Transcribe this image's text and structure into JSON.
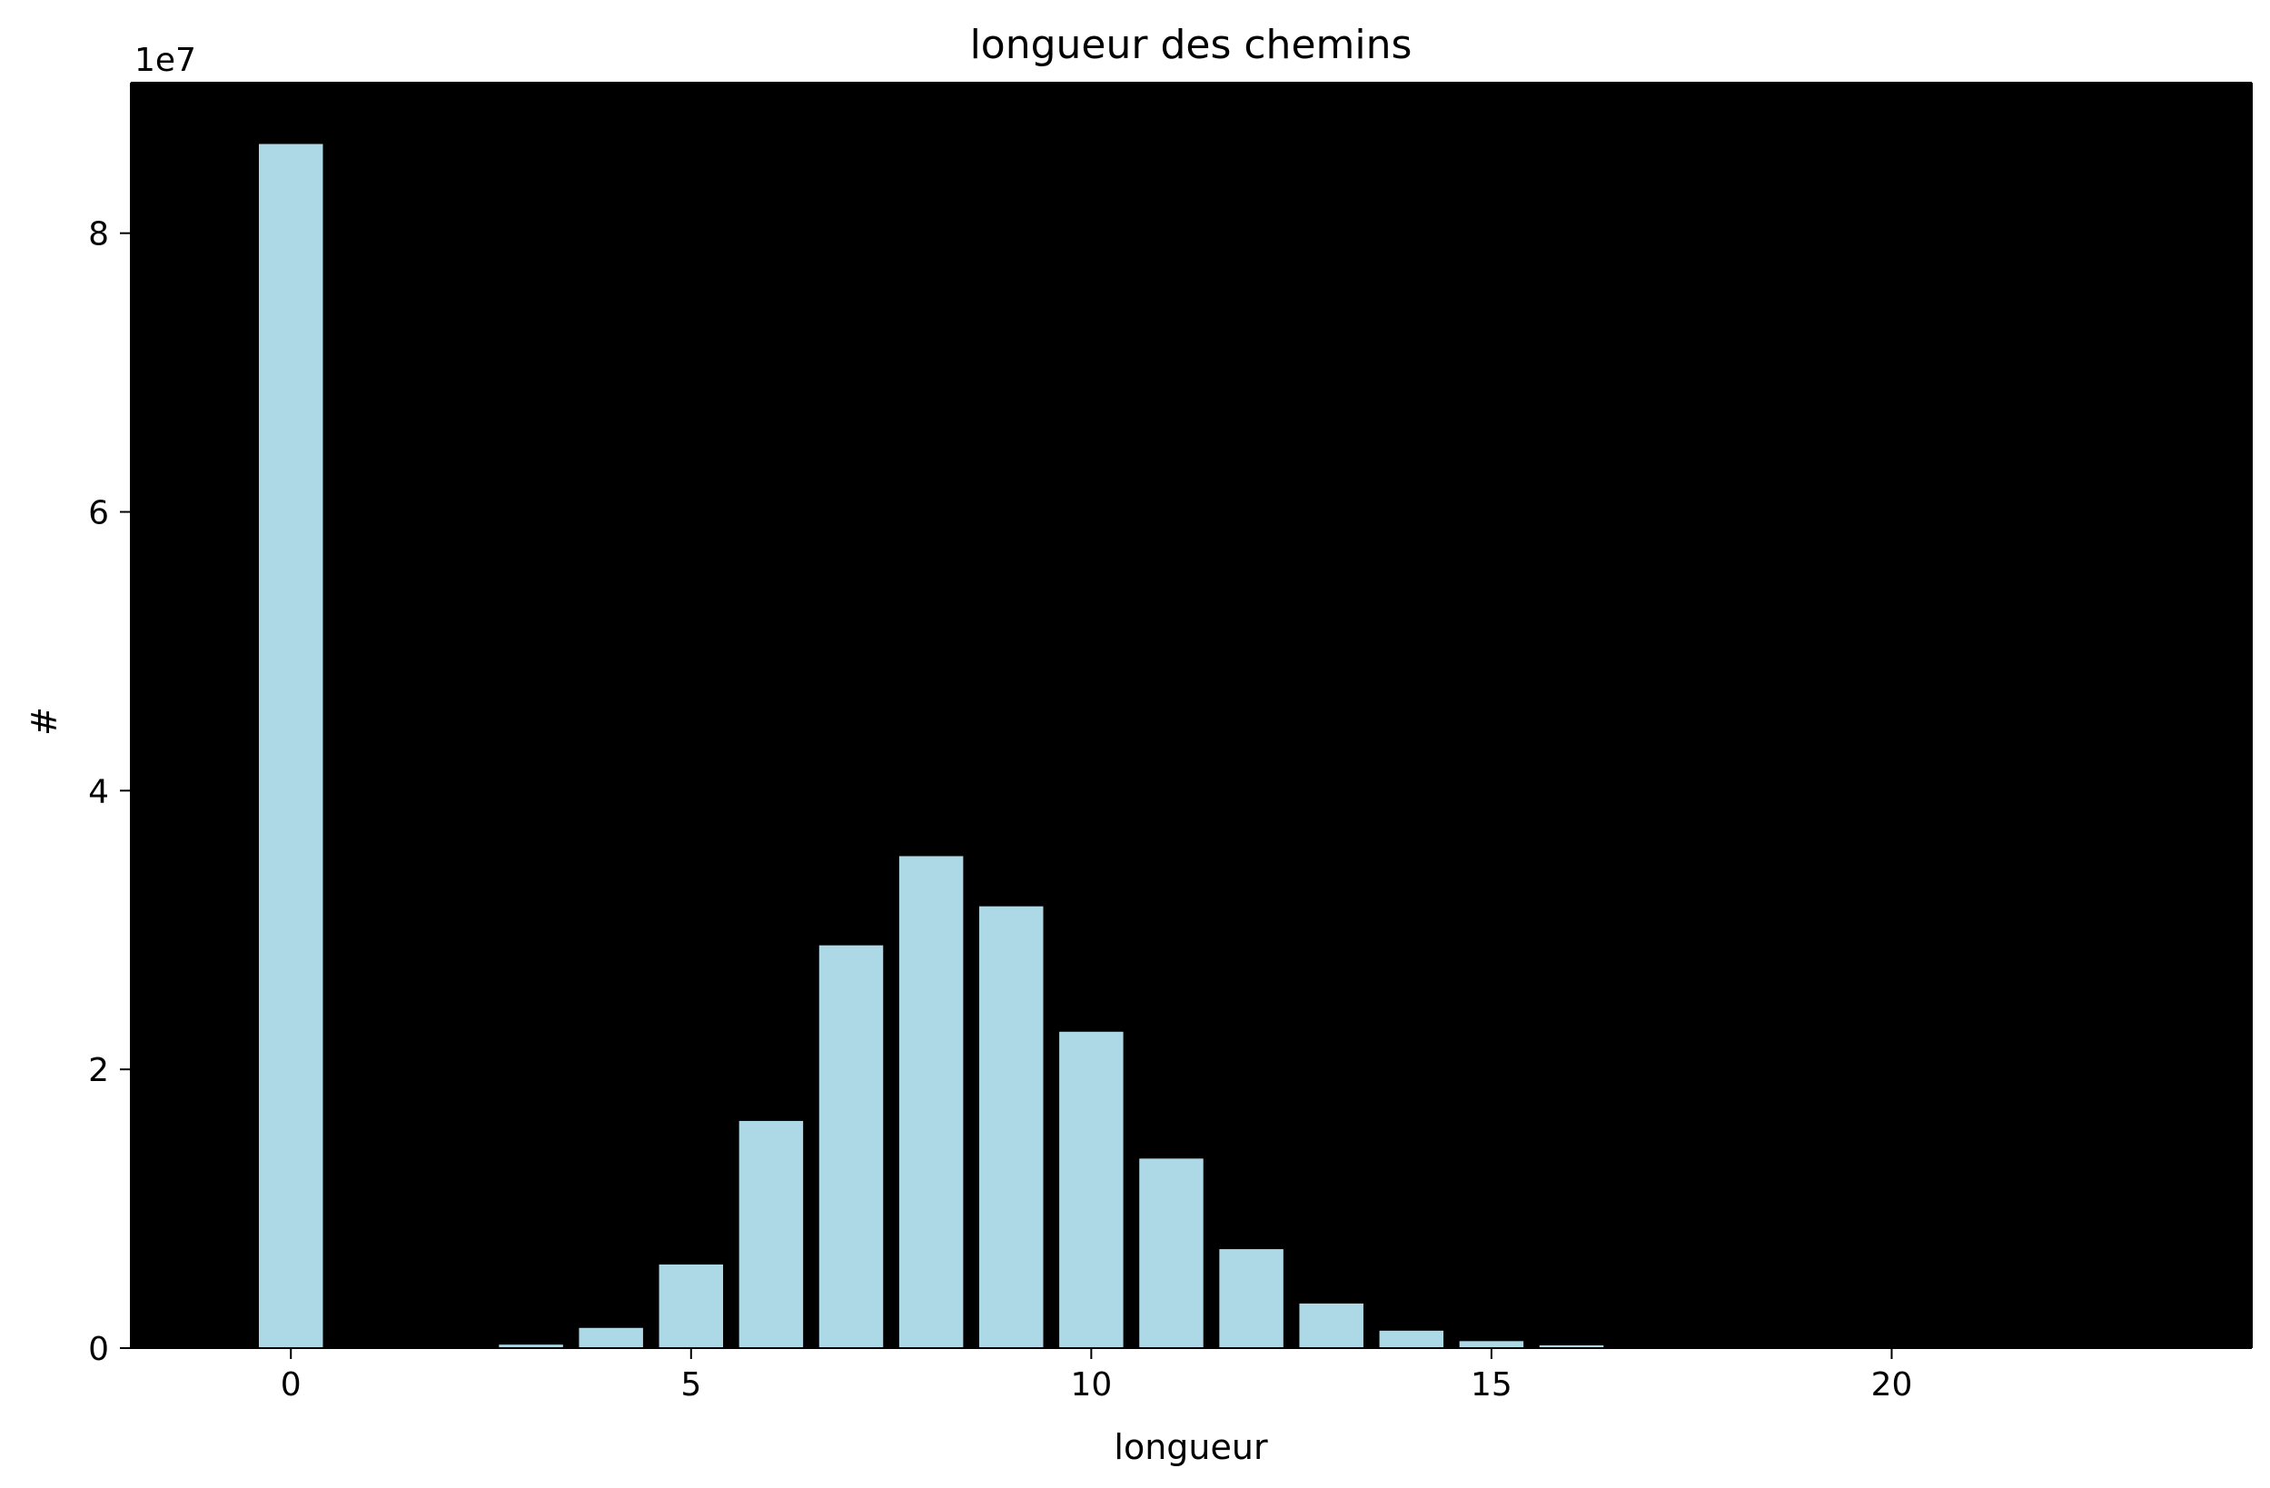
{
  "chart_data": {
    "type": "bar",
    "title": "longueur des chemins",
    "xlabel": "longueur",
    "ylabel": "#",
    "y_offset_label": "1e7",
    "x": [
      0,
      3,
      4,
      5,
      6,
      7,
      8,
      9,
      10,
      11,
      12,
      13,
      14,
      15,
      16,
      17,
      18,
      19,
      20,
      21,
      22,
      23
    ],
    "values": [
      86400000,
      250000,
      1450000,
      6000000,
      16300000,
      28900000,
      35300000,
      31700000,
      22700000,
      13600000,
      7100000,
      3200000,
      1250000,
      500000,
      200000,
      60000,
      20000,
      5000,
      2000,
      500,
      200,
      50
    ],
    "x_ticks": [
      "0",
      "5",
      "10",
      "15",
      "20"
    ],
    "y_ticks": [
      "0",
      "2",
      "4",
      "6",
      "8"
    ],
    "xlim": [
      -2,
      24.5
    ],
    "ylim": [
      0,
      90800000
    ],
    "bar_color": "#add8e6",
    "background_color": "#000000",
    "grid": false
  }
}
